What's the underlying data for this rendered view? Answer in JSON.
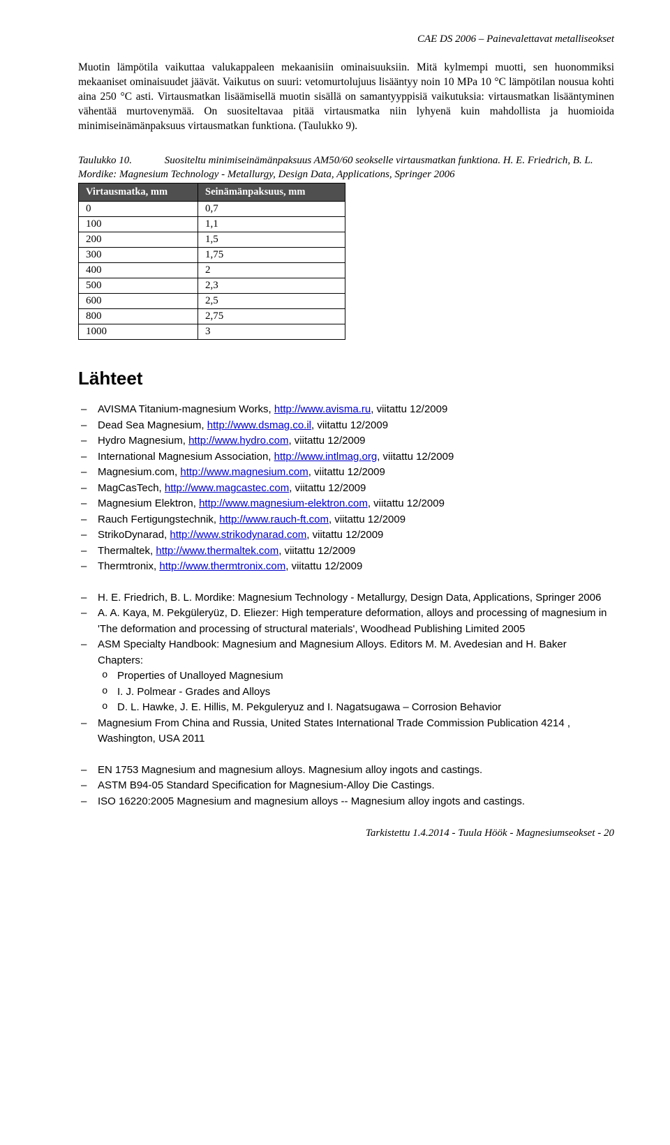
{
  "header": {
    "right": "CAE DS 2006 – Painevalettavat metalliseokset"
  },
  "paragraph1": "Muotin lämpötila vaikuttaa valukappaleen mekaanisiin ominaisuuksiin. Mitä kylmempi muotti, sen huonommiksi mekaaniset ominaisuudet jäävät. Vaikutus on suuri: vetomurtolujuus lisääntyy noin 10 MPa 10 °C lämpötilan nousua kohti aina 250 °C asti. Virtausmatkan lisäämisellä muotin sisällä on samantyyppisiä vaikutuksia: virtausmatkan lisääntyminen vähentää murtovenymää. On suositeltavaa pitää virtausmatka niin lyhyenä kuin mahdollista ja huomioida minimiseinämänpaksuus virtausmatkan funktiona. (Taulukko 9).",
  "table10": {
    "label": "Taulukko 10.",
    "caption": "Suositeltu minimiseinämänpaksuus AM50/60 seokselle virtausmatkan funktiona. H. E. Friedrich, B. L. Mordike: Magnesium Technology - Metallurgy, Design Data, Applications, Springer 2006",
    "headers": [
      "Virtausmatka, mm",
      "Seinämänpaksuus, mm"
    ],
    "rows": [
      [
        "0",
        "0,7"
      ],
      [
        "100",
        "1,1"
      ],
      [
        "200",
        "1,5"
      ],
      [
        "300",
        "1,75"
      ],
      [
        "400",
        "2"
      ],
      [
        "500",
        "2,3"
      ],
      [
        "600",
        "2,5"
      ],
      [
        "800",
        "2,75"
      ],
      [
        "1000",
        "3"
      ]
    ]
  },
  "sources_heading": "Lähteet",
  "refs1": [
    {
      "pre": "AVISMA Titanium-magnesium Works, ",
      "url": "http://www.avisma.ru",
      "post": ", viitattu 12/2009"
    },
    {
      "pre": "Dead Sea Magnesium, ",
      "url": "http://www.dsmag.co.il",
      "post": ", viitattu 12/2009"
    },
    {
      "pre": "Hydro Magnesium, ",
      "url": "http://www.hydro.com",
      "post": ", viitattu 12/2009"
    },
    {
      "pre": "International Magnesium Association, ",
      "url": "http://www.intlmag.org",
      "post": ", viitattu 12/2009"
    },
    {
      "pre": "Magnesium.com, ",
      "url": "http://www.magnesium.com",
      "post": ", viitattu 12/2009"
    },
    {
      "pre": "MagCasTech, ",
      "url": "http://www.magcastec.com",
      "post": ", viitattu 12/2009"
    },
    {
      "pre": "Magnesium Elektron, ",
      "url": "http://www.magnesium-elektron.com",
      "post": ", viitattu 12/2009"
    },
    {
      "pre": "Rauch Fertigungstechnik, ",
      "url": "http://www.rauch-ft.com",
      "post": ", viitattu 12/2009"
    },
    {
      "pre": "StrikoDynarad, ",
      "url": "http://www.strikodynarad.com",
      "post": ", viitattu 12/2009"
    },
    {
      "pre": "Thermaltek, ",
      "url": "http://www.thermaltek.com",
      "post": ", viitattu 12/2009"
    },
    {
      "pre": "Thermtronix, ",
      "url": "http://www.thermtronix.com",
      "post": ", viitattu 12/2009"
    }
  ],
  "refs2": [
    {
      "text": "H. E. Friedrich, B. L. Mordike: Magnesium Technology - Metallurgy, Design Data, Applications, Springer 2006"
    },
    {
      "text": "A. A. Kaya, M. Pekgüleryüz, D. Eliezer: High temperature deformation, alloys and processing of magnesium in 'The deformation and processing of structural materials', Woodhead Publishing Limited 2005"
    },
    {
      "text": "ASM Specialty Handbook: Magnesium and Magnesium Alloys. Editors M. M. Avedesian and H. Baker Chapters:",
      "sub": [
        "Properties of Unalloyed Magnesium",
        "I. J. Polmear - Grades and Alloys",
        "D. L. Hawke, J. E. Hillis, M. Pekguleryuz and I. Nagatsugawa – Corrosion Behavior"
      ]
    },
    {
      "text": "Magnesium From China and Russia, United States International Trade Commission Publication 4214 , Washington, USA 2011"
    }
  ],
  "refs3": [
    {
      "text": "EN 1753 Magnesium and magnesium alloys. Magnesium alloy ingots and castings."
    },
    {
      "text": "ASTM B94-05 Standard Specification for Magnesium-Alloy Die Castings."
    },
    {
      "text": "ISO 16220:2005 Magnesium and magnesium alloys -- Magnesium alloy ingots and castings."
    }
  ],
  "footer": "Tarkistettu 1.4.2014 - Tuula Höök - Magnesiumseokset - 20"
}
